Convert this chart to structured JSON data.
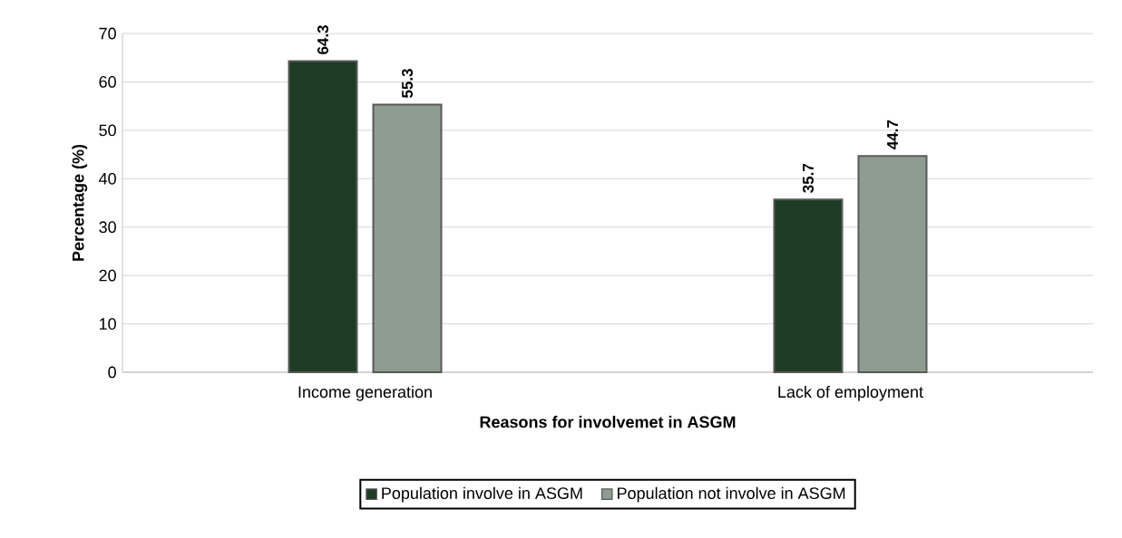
{
  "chart_data": {
    "type": "bar",
    "xlabel": "Reasons for involvemet in ASGM",
    "ylabel": "Percentage (%)",
    "categories": [
      "Income generation",
      "Lack of employment"
    ],
    "series": [
      {
        "name": "Population involve in ASGM",
        "color": "#1e3b24",
        "values": [
          64.3,
          35.7
        ]
      },
      {
        "name": "Population not involve in ASGM",
        "color": "#8e9c91",
        "values": [
          55.3,
          44.7
        ]
      }
    ],
    "ylim": [
      0,
      70
    ],
    "yticks": [
      0,
      10,
      20,
      30,
      40,
      50,
      60,
      70
    ],
    "grid": "y",
    "legend": "bottom",
    "data_labels": true
  }
}
